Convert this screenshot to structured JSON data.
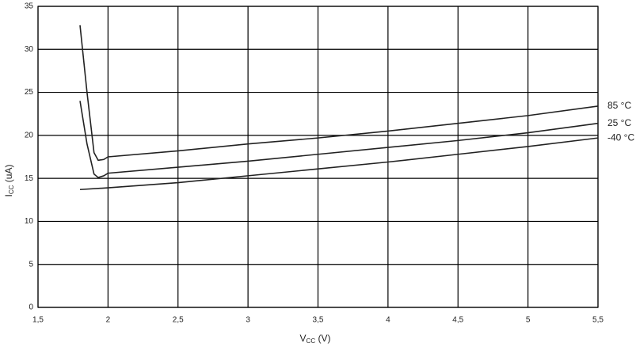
{
  "chart_data": {
    "type": "line",
    "x_label": [
      "V",
      "CC",
      " (V)"
    ],
    "y_label": [
      "I",
      "CC",
      " (uA)"
    ],
    "xlim": [
      1.5,
      5.5
    ],
    "xticks": [
      {
        "value": 1.5,
        "label": "1,5"
      },
      2,
      {
        "value": 2.5,
        "label": "2,5"
      },
      3,
      {
        "value": 3.5,
        "label": "3,5"
      },
      4,
      {
        "value": 4.5,
        "label": "4,5"
      },
      5,
      {
        "value": 5.5,
        "label": "5,5"
      }
    ],
    "ylim": [
      0,
      35
    ],
    "yticks": [
      0,
      5,
      10,
      15,
      20,
      25,
      30,
      35
    ],
    "grid": true,
    "series": [
      {
        "name": "85 °C",
        "color": "#222222",
        "x": [
          1.8,
          1.85,
          1.9,
          1.93,
          1.97,
          2.0,
          2.5,
          3,
          3.5,
          4,
          4.5,
          5,
          5.5
        ],
        "values": [
          32.8,
          25,
          18,
          17.1,
          17.2,
          17.5,
          18.2,
          19,
          19.7,
          20.5,
          21.4,
          22.3,
          23.4
        ]
      },
      {
        "name": "25 °C",
        "color": "#222222",
        "x": [
          1.8,
          1.85,
          1.9,
          1.93,
          1.97,
          2.0,
          2.5,
          3,
          3.5,
          4,
          4.5,
          5,
          5.5
        ],
        "values": [
          24,
          19,
          15.5,
          15.1,
          15.3,
          15.6,
          16.3,
          17,
          17.8,
          18.6,
          19.4,
          20.3,
          21.4
        ]
      },
      {
        "name": "-40 °C",
        "color": "#222222",
        "x": [
          1.8,
          2,
          2.5,
          3,
          3.5,
          4,
          4.5,
          5,
          5.5
        ],
        "values": [
          13.7,
          13.9,
          14.5,
          15.3,
          16.1,
          16.9,
          17.8,
          18.7,
          19.7
        ]
      }
    ]
  }
}
